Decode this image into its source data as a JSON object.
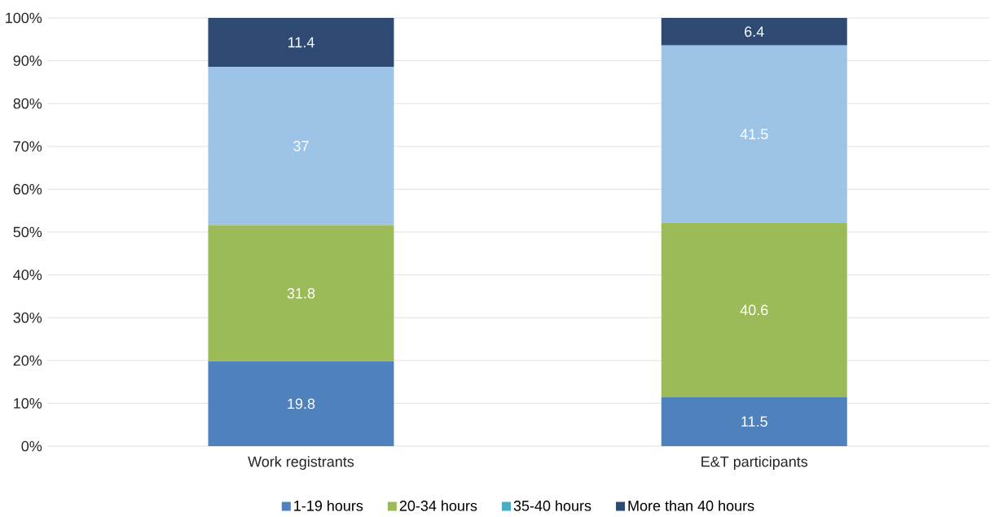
{
  "chart_data": {
    "type": "bar",
    "stacked": true,
    "categories": [
      "Work registrants",
      "E&T participants"
    ],
    "ylim": [
      0,
      100
    ],
    "yticks": [
      {
        "value": 0,
        "label": "0%"
      },
      {
        "value": 10,
        "label": "10%"
      },
      {
        "value": 20,
        "label": "20%"
      },
      {
        "value": 30,
        "label": "30%"
      },
      {
        "value": 40,
        "label": "40%"
      },
      {
        "value": 50,
        "label": "50%"
      },
      {
        "value": 60,
        "label": "60%"
      },
      {
        "value": 70,
        "label": "70%"
      },
      {
        "value": 80,
        "label": "80%"
      },
      {
        "value": 90,
        "label": "90%"
      },
      {
        "value": 100,
        "label": "100%"
      }
    ],
    "grid": "y",
    "legend": "bottom",
    "series": [
      {
        "name": "1-19 hours",
        "color": "#4f81bd",
        "values": [
          19.8,
          11.5
        ],
        "value_labels": [
          "19.8",
          "11.5"
        ]
      },
      {
        "name": "20-34 hours",
        "color": "#9bbb59",
        "values": [
          31.8,
          40.6
        ],
        "value_labels": [
          "31.8",
          "40.6"
        ]
      },
      {
        "name": "35-40 hours",
        "color": "#4bacc6",
        "values": [
          null,
          null
        ]
      },
      {
        "color": "#9dc3e6",
        "values": [
          37,
          41.5
        ],
        "value_labels": [
          "37",
          "41.5"
        ]
      },
      {
        "name": "More than 40 hours",
        "color": "#2e4a73",
        "values": [
          11.4,
          6.4
        ],
        "value_labels": [
          "11.4",
          "6.4"
        ]
      }
    ]
  }
}
